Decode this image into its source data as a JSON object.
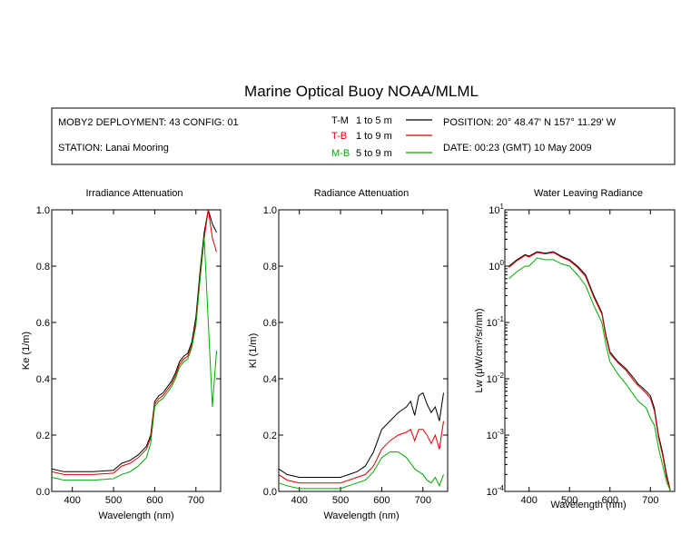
{
  "title": "Marine Optical Buoy NOAA/MLML",
  "info": {
    "deployment": "MOBY2 DEPLOYMENT: 43 CONFIG: 01",
    "station": "STATION: Lanai Mooring",
    "position": "POSITION: 20° 48.47' N   157° 11.29' W",
    "date": "DATE: 00:23 (GMT) 10 May 2009",
    "legend": [
      {
        "name": "T-M",
        "range": "1 to 5  m",
        "color": "#000000"
      },
      {
        "name": "T-B",
        "range": "1 to 9  m",
        "color": "#dd0000"
      },
      {
        "name": "M-B",
        "range": "5 to 9  m",
        "color": "#00aa00"
      }
    ]
  },
  "chart_data": [
    {
      "type": "line",
      "title": "Irradiance Attenuation",
      "xlabel": "Wavelength (nm)",
      "ylabel": "Ke  (1/m)",
      "xlim": [
        350,
        760
      ],
      "ylim": [
        0,
        1.0
      ],
      "xticks": [
        400,
        500,
        600,
        700
      ],
      "yticks": [
        0.0,
        0.2,
        0.4,
        0.6,
        0.8,
        1.0
      ],
      "ytick_labels": [
        "0.0",
        "0.2",
        "0.4",
        "0.6",
        "0.8",
        "1.0"
      ],
      "x": [
        350,
        380,
        400,
        450,
        500,
        520,
        540,
        560,
        580,
        590,
        600,
        610,
        620,
        630,
        640,
        650,
        660,
        670,
        680,
        690,
        700,
        710,
        720,
        730,
        740,
        750
      ],
      "series": [
        {
          "name": "T-M",
          "color": "#000000",
          "values": [
            0.08,
            0.07,
            0.07,
            0.07,
            0.075,
            0.1,
            0.11,
            0.13,
            0.16,
            0.2,
            0.32,
            0.34,
            0.35,
            0.37,
            0.39,
            0.42,
            0.46,
            0.48,
            0.49,
            0.53,
            0.62,
            0.78,
            0.92,
            1.0,
            0.95,
            0.92
          ]
        },
        {
          "name": "T-B",
          "color": "#dd0000",
          "values": [
            0.07,
            0.06,
            0.06,
            0.06,
            0.065,
            0.09,
            0.1,
            0.12,
            0.15,
            0.19,
            0.31,
            0.33,
            0.34,
            0.36,
            0.38,
            0.41,
            0.45,
            0.47,
            0.48,
            0.52,
            0.6,
            0.76,
            0.9,
            1.0,
            0.9,
            0.85
          ]
        },
        {
          "name": "M-B",
          "color": "#00aa00",
          "values": [
            0.05,
            0.04,
            0.04,
            0.04,
            0.045,
            0.06,
            0.07,
            0.09,
            0.12,
            0.17,
            0.3,
            0.32,
            0.33,
            0.35,
            0.37,
            0.4,
            0.44,
            0.46,
            0.47,
            0.51,
            0.59,
            0.75,
            0.9,
            0.6,
            0.3,
            0.5
          ]
        }
      ]
    },
    {
      "type": "line",
      "title": "Radiance Attenuation",
      "xlabel": "Wavelength (nm)",
      "ylabel": "Kl  (1/m)",
      "xlim": [
        350,
        760
      ],
      "ylim": [
        0,
        1.0
      ],
      "xticks": [
        400,
        500,
        600,
        700
      ],
      "yticks": [
        0.0,
        0.2,
        0.4,
        0.6,
        0.8,
        1.0
      ],
      "ytick_labels": [
        "0.0",
        "0.2",
        "0.4",
        "0.6",
        "0.8",
        "1.0"
      ],
      "x": [
        350,
        370,
        400,
        450,
        500,
        520,
        540,
        560,
        580,
        600,
        620,
        640,
        660,
        670,
        680,
        690,
        700,
        710,
        720,
        730,
        740,
        750
      ],
      "series": [
        {
          "name": "T-M",
          "color": "#000000",
          "values": [
            0.08,
            0.06,
            0.05,
            0.05,
            0.05,
            0.06,
            0.07,
            0.09,
            0.14,
            0.22,
            0.25,
            0.28,
            0.3,
            0.32,
            0.27,
            0.34,
            0.35,
            0.31,
            0.28,
            0.3,
            0.25,
            0.35
          ]
        },
        {
          "name": "T-B",
          "color": "#dd0000",
          "values": [
            0.06,
            0.04,
            0.03,
            0.03,
            0.03,
            0.04,
            0.05,
            0.06,
            0.09,
            0.15,
            0.18,
            0.2,
            0.21,
            0.22,
            0.18,
            0.22,
            0.22,
            0.2,
            0.17,
            0.2,
            0.15,
            0.25
          ]
        },
        {
          "name": "M-B",
          "color": "#00aa00",
          "values": [
            0.03,
            0.02,
            0.01,
            0.01,
            0.01,
            0.02,
            0.03,
            0.04,
            0.07,
            0.12,
            0.14,
            0.14,
            0.12,
            0.1,
            0.08,
            0.07,
            0.06,
            0.04,
            0.03,
            0.05,
            0.02,
            0.06
          ]
        }
      ]
    },
    {
      "type": "line",
      "title": "Water Leaving Radiance",
      "xlabel": "Wavelength (nm)",
      "ylabel": "Lw  (μW/cm²/sr/nm)",
      "yscale": "log",
      "xlim": [
        340,
        760
      ],
      "ylim": [
        0.0001,
        10
      ],
      "xticks": [
        400,
        500,
        600,
        700
      ],
      "yticks": [
        0.0001,
        0.001,
        0.01,
        0.1,
        1,
        10
      ],
      "ytick_labels": [
        {
          "base": "10",
          "exp": "-4"
        },
        {
          "base": "10",
          "exp": "-3"
        },
        {
          "base": "10",
          "exp": "-2"
        },
        {
          "base": "10",
          "exp": "-1"
        },
        {
          "base": "10",
          "exp": "0"
        },
        {
          "base": "10",
          "exp": "1"
        }
      ],
      "x": [
        350,
        370,
        390,
        400,
        420,
        440,
        460,
        480,
        500,
        520,
        540,
        560,
        580,
        590,
        600,
        620,
        640,
        660,
        670,
        680,
        690,
        700,
        710,
        720,
        730,
        740,
        750
      ],
      "series": [
        {
          "name": "T-M",
          "color": "#000000",
          "values": [
            1.0,
            1.3,
            1.6,
            1.5,
            1.8,
            1.7,
            1.8,
            1.5,
            1.3,
            1.0,
            0.7,
            0.3,
            0.15,
            0.06,
            0.03,
            0.02,
            0.015,
            0.01,
            0.008,
            0.007,
            0.006,
            0.005,
            0.003,
            0.001,
            0.0005,
            0.0002,
            0.0001
          ]
        },
        {
          "name": "T-B",
          "color": "#dd0000",
          "values": [
            0.95,
            1.25,
            1.55,
            1.45,
            1.75,
            1.65,
            1.75,
            1.45,
            1.25,
            0.95,
            0.65,
            0.28,
            0.14,
            0.055,
            0.028,
            0.019,
            0.014,
            0.009,
            0.0075,
            0.0065,
            0.0055,
            0.0045,
            0.0027,
            0.0009,
            0.00045,
            0.00018,
            0.0001
          ]
        },
        {
          "name": "M-B",
          "color": "#00aa00",
          "values": [
            0.6,
            0.8,
            1.0,
            1.0,
            1.4,
            1.3,
            1.3,
            1.1,
            1.0,
            0.7,
            0.45,
            0.2,
            0.1,
            0.04,
            0.02,
            0.012,
            0.008,
            0.005,
            0.004,
            0.0035,
            0.003,
            0.002,
            0.0015,
            0.0006,
            0.0003,
            0.00015,
            0.0001
          ]
        }
      ]
    }
  ]
}
